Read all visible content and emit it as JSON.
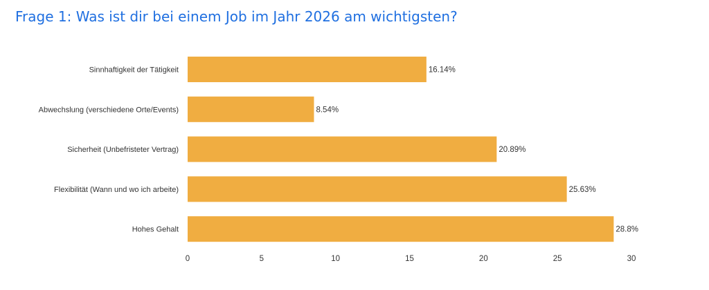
{
  "page": {
    "title": "Frage 1: Was ist dir bei einem Job im Jahr 2026 am wichtigsten?"
  },
  "colors": {
    "title": "#1f6fe0",
    "bar": "#f0ad41",
    "text": "#333333"
  },
  "chart_data": {
    "type": "bar",
    "orientation": "horizontal",
    "title": "Frage 1: Was ist dir bei einem Job im Jahr 2026 am wichtigsten?",
    "categories": [
      "Sinnhaftigkeit der Tätigkeit",
      "Abwechslung (verschiedene Orte/Events)",
      "Sicherheit (Unbefristeter Vertrag)",
      "Flexibilität (Wann und wo ich arbeite)",
      "Hohes Gehalt"
    ],
    "values": [
      16.14,
      8.54,
      20.89,
      25.63,
      28.8
    ],
    "value_labels": [
      "16.14%",
      "8.54%",
      "20.89%",
      "25.63%",
      "28.8%"
    ],
    "xlim": [
      0,
      30
    ],
    "xticks": [
      0,
      5,
      10,
      15,
      20,
      25,
      30
    ],
    "xlabel": "",
    "ylabel": "",
    "grid": false,
    "legend": false
  }
}
